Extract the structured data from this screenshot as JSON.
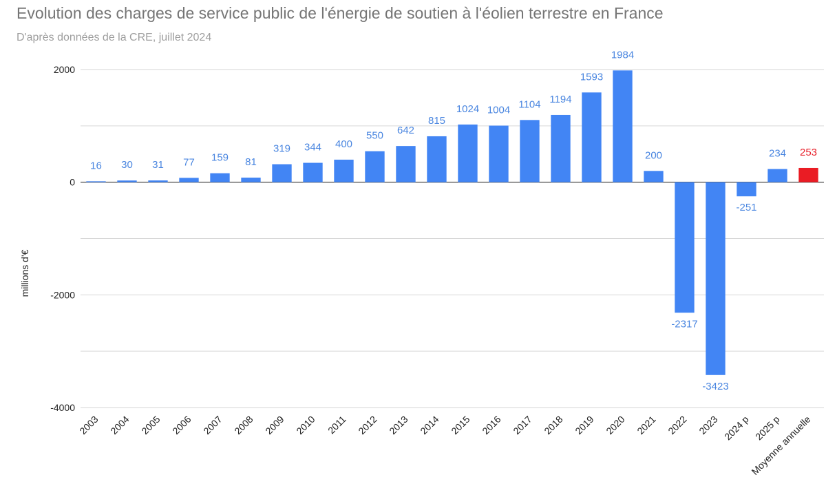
{
  "chart_data": {
    "type": "bar",
    "title": "Evolution des charges de service public de l'énergie de soutien à l'éolien terrestre en France",
    "subtitle": "D'après données de la CRE, juillet 2024",
    "xlabel": "",
    "ylabel": "millions d'€",
    "ylim": [
      -4000,
      2000
    ],
    "yticks": [
      2000,
      0,
      -2000,
      -4000
    ],
    "grid": true,
    "categories": [
      "2003",
      "2004",
      "2005",
      "2006",
      "2007",
      "2008",
      "2009",
      "2010",
      "2011",
      "2012",
      "2013",
      "2014",
      "2015",
      "2016",
      "2017",
      "2018",
      "2019",
      "2020",
      "2021",
      "2022",
      "2023",
      "2024 p",
      "2025 p",
      "Moyenne annuelle"
    ],
    "values": [
      16,
      30,
      31,
      77,
      159,
      81,
      319,
      344,
      400,
      550,
      642,
      815,
      1024,
      1004,
      1104,
      1194,
      1593,
      1984,
      200,
      -2317,
      -3423,
      -251,
      234,
      253
    ],
    "colors": {
      "bar": "#4285f4",
      "highlight": "#ea1c24",
      "label": "#4a86e0",
      "highlight_label": "#e8202a"
    },
    "highlight_index": 23
  }
}
